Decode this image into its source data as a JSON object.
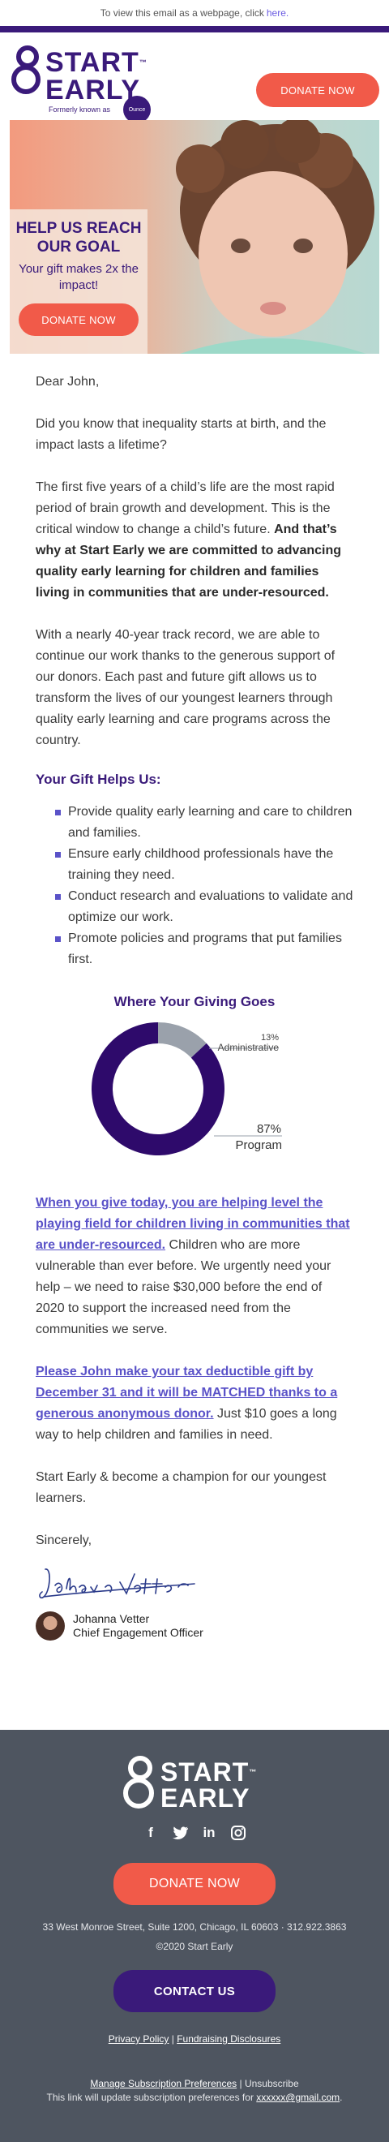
{
  "preheader": {
    "text": "To view this email as a webpage, click",
    "link": "here."
  },
  "brand": {
    "name_line1": "START",
    "name_line2": "EARLY",
    "tm": "™",
    "formerly": "Formerly known as",
    "former_badge": "Ounce",
    "colors": {
      "purple": "#3a1a7a",
      "coral": "#f15a49",
      "accent": "#5a52c8",
      "footer": "#4e5560"
    }
  },
  "header": {
    "donate_label": "DONATE NOW"
  },
  "hero": {
    "headline": "HELP US REACH OUR GOAL",
    "subline": "Your gift makes 2x the impact!",
    "donate_label": "DONATE NOW"
  },
  "letter": {
    "greeting": "Dear John,",
    "p1": "Did you know that inequality starts at birth, and the impact lasts a lifetime?",
    "p2_normal": "The first five years of a child’s life are the most rapid period of brain growth and development. This is the critical window to change a child’s future. ",
    "p2_bold": "And that’s why at Start Early we are committed to advancing quality early learning for children and families living in communities that are under-resourced.",
    "p3": "With a nearly 40-year track record, we are able to continue our work thanks to the generous support of our donors. Each past and future gift allows us to transform the lives of our youngest learners through quality early learning and care programs across the country.",
    "gift_heading": "Your Gift Helps Us:",
    "gift_items": [
      "Provide quality early learning and care to children and families.",
      "Ensure early childhood professionals have the training they need.",
      "Conduct research and evaluations to validate and optimize our work.",
      "Promote policies and programs that put families first."
    ],
    "p4_link": "When you give today, you are helping level the playing field for children living in communities that are under-resourced.",
    "p4_rest": " Children who are more vulnerable than ever before. We urgently need your help – we need to raise $30,000 before the end of 2020 to support the increased need from the communities we serve.",
    "p5_link": "Please John make your tax deductible gift by December 31 and it will be MATCHED thanks to a generous anonymous donor.",
    "p5_rest": " Just $10 goes a long way to help children and families in need.",
    "p6": "Start Early & become a champion for our youngest learners.",
    "closing": "Sincerely,",
    "signature_script": "Johanna Vetter",
    "signer_name": "Johanna Vetter",
    "signer_title": "Chief Engagement Officer"
  },
  "chart_data": {
    "type": "pie",
    "title": "Where Your Giving Goes",
    "categories": [
      "Administrative",
      "Program"
    ],
    "values": [
      13,
      87
    ],
    "value_labels": [
      "13%",
      "87%"
    ],
    "colors": [
      "#9aa1ab",
      "#2e0a6b"
    ],
    "donut": true
  },
  "footer": {
    "socials": [
      "facebook-icon",
      "twitter-icon",
      "linkedin-icon",
      "instagram-icon"
    ],
    "donate_label": "DONATE NOW",
    "address": "33 West Monroe Street, Suite 1200, Chicago, IL 60603 · 312.922.3863",
    "copyright": "©2020 Start Early",
    "contact_label": "CONTACT US",
    "privacy": "Privacy Policy",
    "fundraising": "Fundraising Disclosures",
    "manage": "Manage Subscription Preferences",
    "unsubscribe": "Unsubscribe",
    "manage_note": "This link will update subscription preferences for",
    "email": "xxxxxx@gmail.com"
  }
}
